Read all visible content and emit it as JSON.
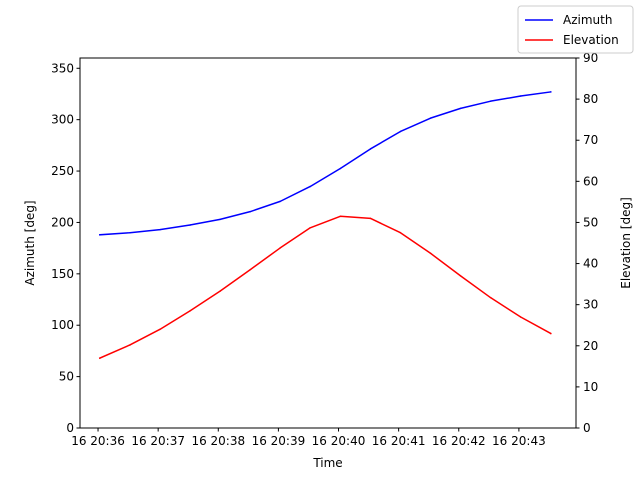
{
  "chart_data": {
    "type": "line",
    "xlabel": "Time",
    "ylabel_left": "Azimuth [deg]",
    "ylabel_right": "Elevation [deg]",
    "ylim_left": [
      0,
      360
    ],
    "ylim_right": [
      0,
      90
    ],
    "left_ticks": [
      0,
      50,
      100,
      150,
      200,
      250,
      300,
      350
    ],
    "right_ticks": [
      0,
      10,
      20,
      30,
      40,
      50,
      60,
      70,
      80,
      90
    ],
    "x_tick_labels": [
      "16 20:36",
      "16 20:37",
      "16 20:38",
      "16 20:39",
      "16 20:40",
      "16 20:41",
      "16 20:42",
      "16 20:43"
    ],
    "x_tick_minutes": [
      36,
      37,
      38,
      39,
      40,
      41,
      42,
      43
    ],
    "xlim_minutes": [
      35.7,
      43.95
    ],
    "x_minutes": [
      36.03,
      36.53,
      37.03,
      37.53,
      38.03,
      38.53,
      39.03,
      39.53,
      40.03,
      40.53,
      41.03,
      41.53,
      42.03,
      42.53,
      43.03,
      43.53
    ],
    "series": [
      {
        "name": "Azimuth",
        "axis": "left",
        "color": "#0000ff",
        "values": [
          188,
          190,
          193,
          197.5,
          203,
          210.5,
          220.5,
          235,
          252.5,
          271.5,
          288.5,
          301.5,
          311,
          318,
          323,
          327
        ]
      },
      {
        "name": "Elevation",
        "axis": "right",
        "color": "#ff0000",
        "values": [
          17,
          20.2,
          24,
          28.5,
          33.3,
          38.5,
          43.8,
          48.7,
          51.5,
          51,
          47.5,
          42.5,
          37,
          31.7,
          27,
          23
        ]
      }
    ],
    "legend_position": "top-right"
  }
}
